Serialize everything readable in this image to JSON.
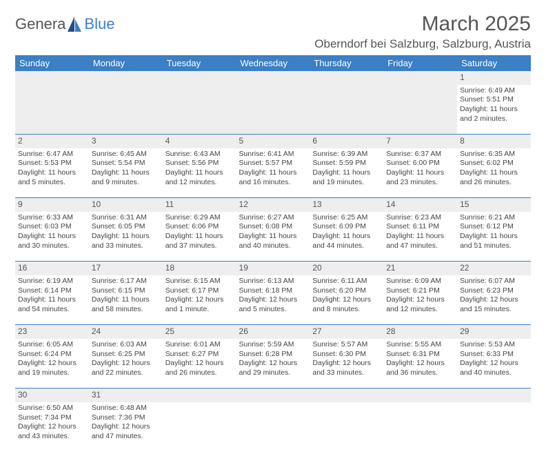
{
  "logo": {
    "text1": "Genera",
    "text2": "Blue"
  },
  "title": "March 2025",
  "subtitle": "Oberndorf bei Salzburg, Salzburg, Austria",
  "colors": {
    "header_bg": "#3b7fc4",
    "header_text": "#ffffff",
    "border": "#3b7fc4",
    "daynum_bg": "#eeeeee",
    "body_text": "#444444",
    "title_text": "#555555"
  },
  "day_headers": [
    "Sunday",
    "Monday",
    "Tuesday",
    "Wednesday",
    "Thursday",
    "Friday",
    "Saturday"
  ],
  "weeks": [
    [
      null,
      null,
      null,
      null,
      null,
      null,
      {
        "n": "1",
        "l1": "Sunrise: 6:49 AM",
        "l2": "Sunset: 5:51 PM",
        "l3": "Daylight: 11 hours",
        "l4": "and 2 minutes."
      }
    ],
    [
      {
        "n": "2",
        "l1": "Sunrise: 6:47 AM",
        "l2": "Sunset: 5:53 PM",
        "l3": "Daylight: 11 hours",
        "l4": "and 5 minutes."
      },
      {
        "n": "3",
        "l1": "Sunrise: 6:45 AM",
        "l2": "Sunset: 5:54 PM",
        "l3": "Daylight: 11 hours",
        "l4": "and 9 minutes."
      },
      {
        "n": "4",
        "l1": "Sunrise: 6:43 AM",
        "l2": "Sunset: 5:56 PM",
        "l3": "Daylight: 11 hours",
        "l4": "and 12 minutes."
      },
      {
        "n": "5",
        "l1": "Sunrise: 6:41 AM",
        "l2": "Sunset: 5:57 PM",
        "l3": "Daylight: 11 hours",
        "l4": "and 16 minutes."
      },
      {
        "n": "6",
        "l1": "Sunrise: 6:39 AM",
        "l2": "Sunset: 5:59 PM",
        "l3": "Daylight: 11 hours",
        "l4": "and 19 minutes."
      },
      {
        "n": "7",
        "l1": "Sunrise: 6:37 AM",
        "l2": "Sunset: 6:00 PM",
        "l3": "Daylight: 11 hours",
        "l4": "and 23 minutes."
      },
      {
        "n": "8",
        "l1": "Sunrise: 6:35 AM",
        "l2": "Sunset: 6:02 PM",
        "l3": "Daylight: 11 hours",
        "l4": "and 26 minutes."
      }
    ],
    [
      {
        "n": "9",
        "l1": "Sunrise: 6:33 AM",
        "l2": "Sunset: 6:03 PM",
        "l3": "Daylight: 11 hours",
        "l4": "and 30 minutes."
      },
      {
        "n": "10",
        "l1": "Sunrise: 6:31 AM",
        "l2": "Sunset: 6:05 PM",
        "l3": "Daylight: 11 hours",
        "l4": "and 33 minutes."
      },
      {
        "n": "11",
        "l1": "Sunrise: 6:29 AM",
        "l2": "Sunset: 6:06 PM",
        "l3": "Daylight: 11 hours",
        "l4": "and 37 minutes."
      },
      {
        "n": "12",
        "l1": "Sunrise: 6:27 AM",
        "l2": "Sunset: 6:08 PM",
        "l3": "Daylight: 11 hours",
        "l4": "and 40 minutes."
      },
      {
        "n": "13",
        "l1": "Sunrise: 6:25 AM",
        "l2": "Sunset: 6:09 PM",
        "l3": "Daylight: 11 hours",
        "l4": "and 44 minutes."
      },
      {
        "n": "14",
        "l1": "Sunrise: 6:23 AM",
        "l2": "Sunset: 6:11 PM",
        "l3": "Daylight: 11 hours",
        "l4": "and 47 minutes."
      },
      {
        "n": "15",
        "l1": "Sunrise: 6:21 AM",
        "l2": "Sunset: 6:12 PM",
        "l3": "Daylight: 11 hours",
        "l4": "and 51 minutes."
      }
    ],
    [
      {
        "n": "16",
        "l1": "Sunrise: 6:19 AM",
        "l2": "Sunset: 6:14 PM",
        "l3": "Daylight: 11 hours",
        "l4": "and 54 minutes."
      },
      {
        "n": "17",
        "l1": "Sunrise: 6:17 AM",
        "l2": "Sunset: 6:15 PM",
        "l3": "Daylight: 11 hours",
        "l4": "and 58 minutes."
      },
      {
        "n": "18",
        "l1": "Sunrise: 6:15 AM",
        "l2": "Sunset: 6:17 PM",
        "l3": "Daylight: 12 hours",
        "l4": "and 1 minute."
      },
      {
        "n": "19",
        "l1": "Sunrise: 6:13 AM",
        "l2": "Sunset: 6:18 PM",
        "l3": "Daylight: 12 hours",
        "l4": "and 5 minutes."
      },
      {
        "n": "20",
        "l1": "Sunrise: 6:11 AM",
        "l2": "Sunset: 6:20 PM",
        "l3": "Daylight: 12 hours",
        "l4": "and 8 minutes."
      },
      {
        "n": "21",
        "l1": "Sunrise: 6:09 AM",
        "l2": "Sunset: 6:21 PM",
        "l3": "Daylight: 12 hours",
        "l4": "and 12 minutes."
      },
      {
        "n": "22",
        "l1": "Sunrise: 6:07 AM",
        "l2": "Sunset: 6:23 PM",
        "l3": "Daylight: 12 hours",
        "l4": "and 15 minutes."
      }
    ],
    [
      {
        "n": "23",
        "l1": "Sunrise: 6:05 AM",
        "l2": "Sunset: 6:24 PM",
        "l3": "Daylight: 12 hours",
        "l4": "and 19 minutes."
      },
      {
        "n": "24",
        "l1": "Sunrise: 6:03 AM",
        "l2": "Sunset: 6:25 PM",
        "l3": "Daylight: 12 hours",
        "l4": "and 22 minutes."
      },
      {
        "n": "25",
        "l1": "Sunrise: 6:01 AM",
        "l2": "Sunset: 6:27 PM",
        "l3": "Daylight: 12 hours",
        "l4": "and 26 minutes."
      },
      {
        "n": "26",
        "l1": "Sunrise: 5:59 AM",
        "l2": "Sunset: 6:28 PM",
        "l3": "Daylight: 12 hours",
        "l4": "and 29 minutes."
      },
      {
        "n": "27",
        "l1": "Sunrise: 5:57 AM",
        "l2": "Sunset: 6:30 PM",
        "l3": "Daylight: 12 hours",
        "l4": "and 33 minutes."
      },
      {
        "n": "28",
        "l1": "Sunrise: 5:55 AM",
        "l2": "Sunset: 6:31 PM",
        "l3": "Daylight: 12 hours",
        "l4": "and 36 minutes."
      },
      {
        "n": "29",
        "l1": "Sunrise: 5:53 AM",
        "l2": "Sunset: 6:33 PM",
        "l3": "Daylight: 12 hours",
        "l4": "and 40 minutes."
      }
    ],
    [
      {
        "n": "30",
        "l1": "Sunrise: 6:50 AM",
        "l2": "Sunset: 7:34 PM",
        "l3": "Daylight: 12 hours",
        "l4": "and 43 minutes."
      },
      {
        "n": "31",
        "l1": "Sunrise: 6:48 AM",
        "l2": "Sunset: 7:36 PM",
        "l3": "Daylight: 12 hours",
        "l4": "and 47 minutes."
      },
      null,
      null,
      null,
      null,
      null
    ]
  ]
}
